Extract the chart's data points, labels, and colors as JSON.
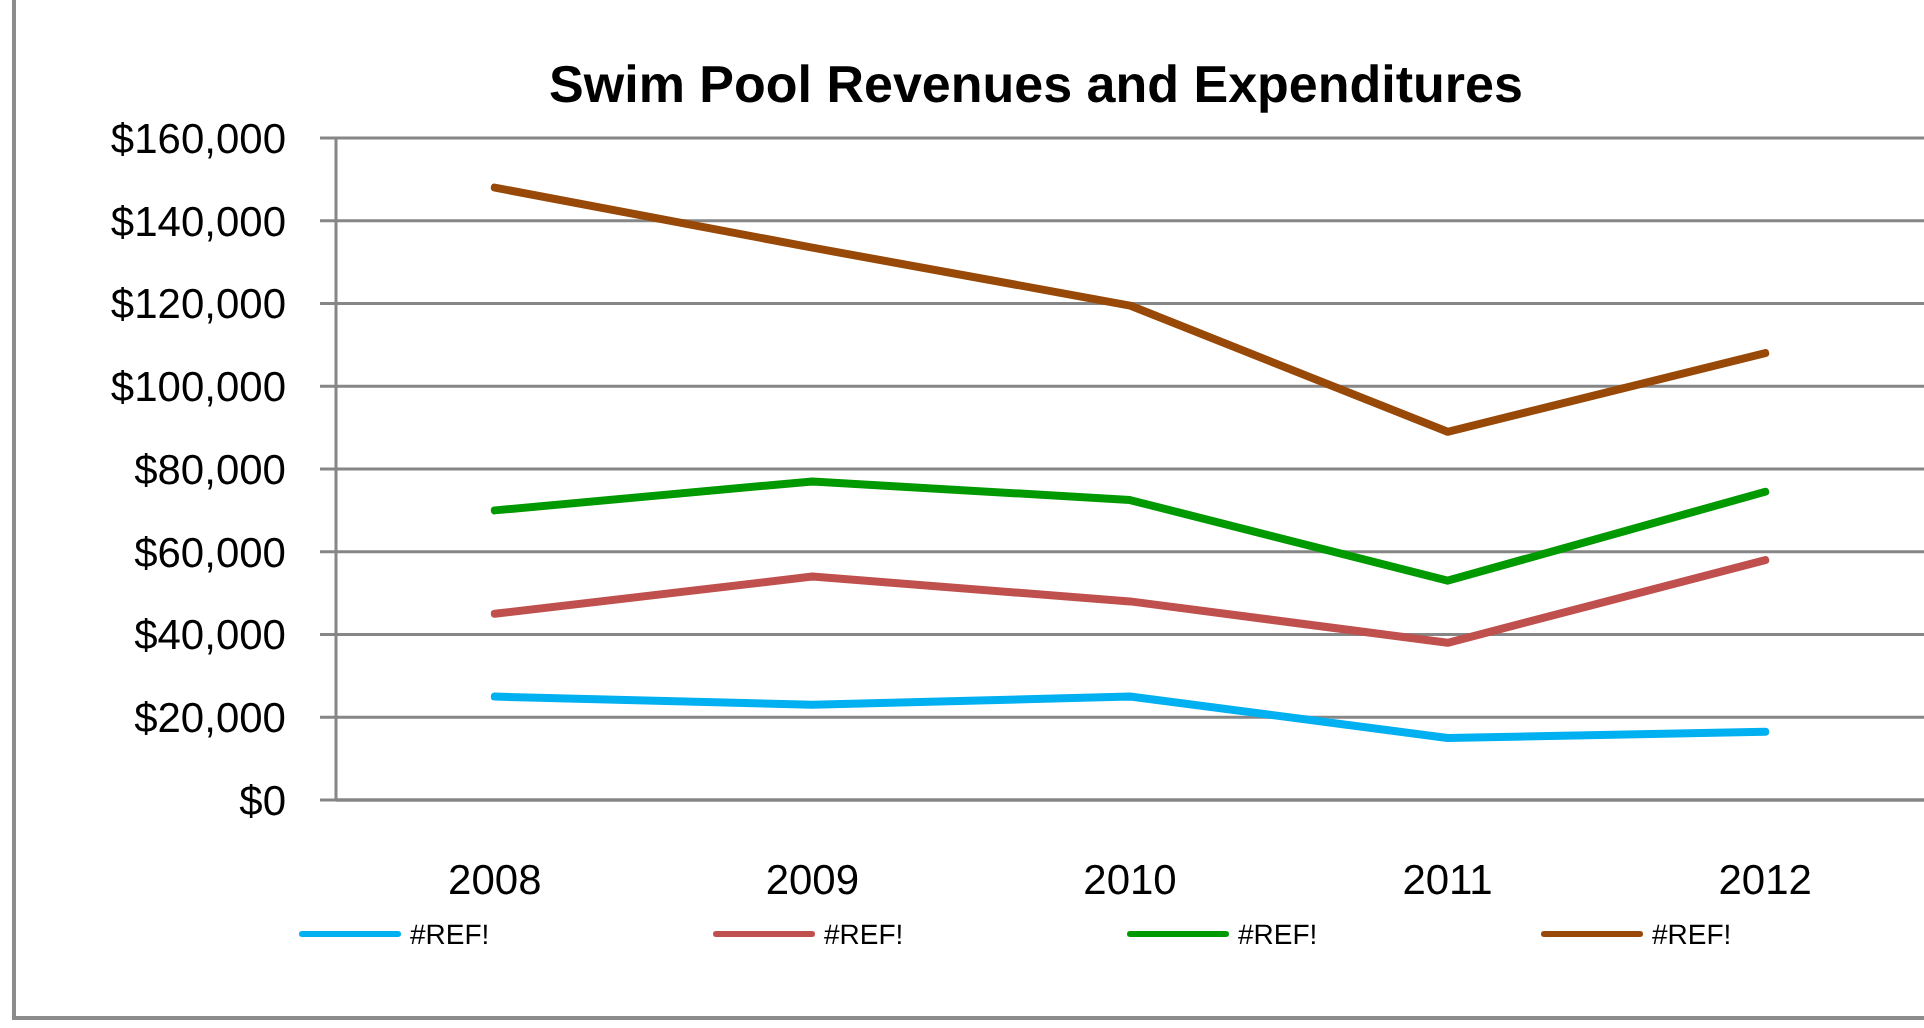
{
  "chart_data": {
    "type": "line",
    "title": "Swim Pool Revenues and Expenditures",
    "categories": [
      "2008",
      "2009",
      "2010",
      "2011",
      "2012"
    ],
    "series": [
      {
        "name": "#REF!",
        "color": "#00b0f0",
        "values": [
          25000,
          23000,
          25000,
          15000,
          16500
        ]
      },
      {
        "name": "#REF!",
        "color": "#c0504d",
        "values": [
          45000,
          54000,
          48000,
          38000,
          58000
        ]
      },
      {
        "name": "#REF!",
        "color": "#009900",
        "values": [
          70000,
          77000,
          72500,
          53000,
          74500
        ]
      },
      {
        "name": "#REF!",
        "color": "#984807",
        "values": [
          148000,
          133500,
          119500,
          89000,
          108000
        ]
      }
    ],
    "ylim": [
      0,
      160000
    ],
    "yticks": [
      {
        "value": 0,
        "label": "$0"
      },
      {
        "value": 20000,
        "label": "$20,000"
      },
      {
        "value": 40000,
        "label": "$40,000"
      },
      {
        "value": 60000,
        "label": "$60,000"
      },
      {
        "value": 80000,
        "label": "$80,000"
      },
      {
        "value": 100000,
        "label": "$100,000"
      },
      {
        "value": 120000,
        "label": "$120,000"
      },
      {
        "value": 140000,
        "label": "$140,000"
      },
      {
        "value": 160000,
        "label": "$160,000"
      }
    ],
    "grid": "y",
    "legend": "bottom",
    "line_style": "solid"
  }
}
